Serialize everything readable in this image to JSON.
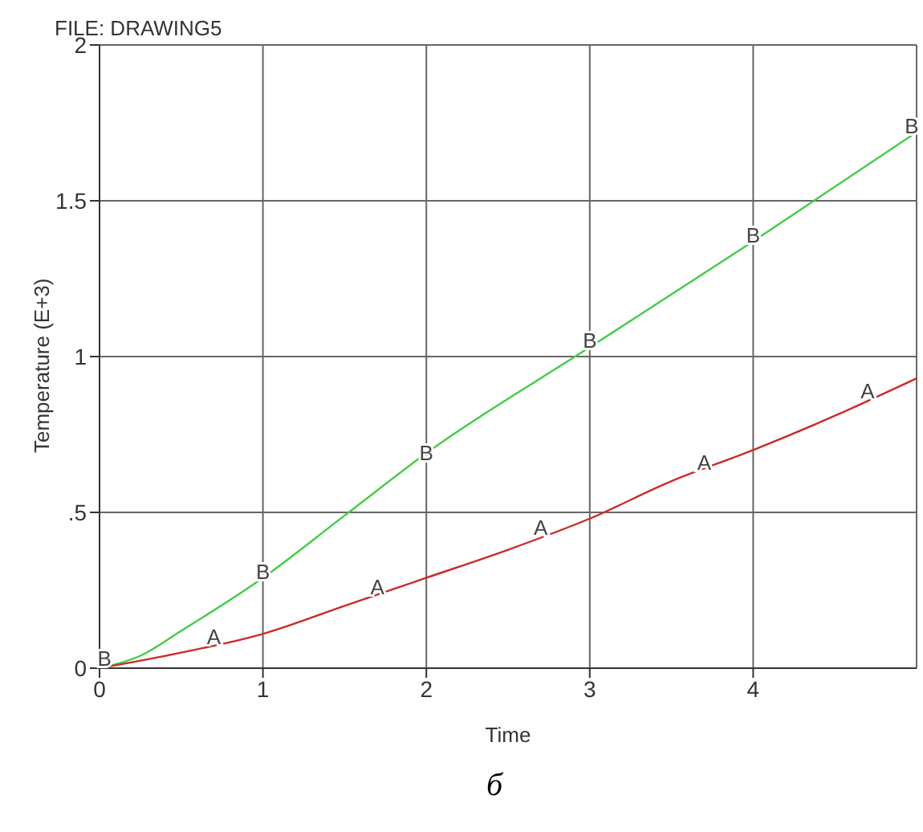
{
  "chart_data": {
    "type": "line",
    "title": "FILE: DRAWING5",
    "xlabel": "Time",
    "ylabel": "Temperature (E+3)",
    "xlim": [
      0,
      5
    ],
    "xticks": [
      0,
      1,
      2,
      3,
      4
    ],
    "ylim": [
      0,
      2
    ],
    "yticks": [
      0,
      {
        "value": 0.5,
        "label": ".5"
      },
      1,
      1.5,
      2
    ],
    "grid": true,
    "legend": false,
    "marker": "none",
    "line_style": "solid",
    "series": [
      {
        "color": "#44cc44",
        "x": [
          0,
          0.25,
          0.5,
          1,
          1.5,
          2,
          3,
          4,
          5
        ],
        "values": [
          0,
          0.04,
          0.12,
          0.29,
          0.49,
          0.69,
          1.03,
          1.37,
          1.72
        ]
      },
      {
        "color": "#cc2a2a",
        "x": [
          0,
          0.5,
          1,
          1.5,
          2,
          2.5,
          3,
          3.5,
          4,
          4.5,
          5
        ],
        "values": [
          0,
          0.05,
          0.11,
          0.2,
          0.29,
          0.38,
          0.48,
          0.6,
          0.7,
          0.81,
          0.93
        ]
      }
    ],
    "annotations": [
      {
        "text": "B",
        "x": 0.03,
        "y": 0.02
      },
      {
        "text": "B",
        "x": 1,
        "y": 0.3
      },
      {
        "text": "B",
        "x": 2,
        "y": 0.68
      },
      {
        "text": "B",
        "x": 3,
        "y": 1.04
      },
      {
        "text": "B",
        "x": 4,
        "y": 1.38
      },
      {
        "text": "B",
        "x": 4.97,
        "y": 1.73
      },
      {
        "text": "A",
        "x": 0.7,
        "y": 0.09
      },
      {
        "text": "A",
        "x": 1.7,
        "y": 0.25
      },
      {
        "text": "A",
        "x": 2.7,
        "y": 0.44
      },
      {
        "text": "A",
        "x": 3.7,
        "y": 0.65
      },
      {
        "text": "A",
        "x": 4.7,
        "y": 0.88
      },
      "б"
    ]
  }
}
